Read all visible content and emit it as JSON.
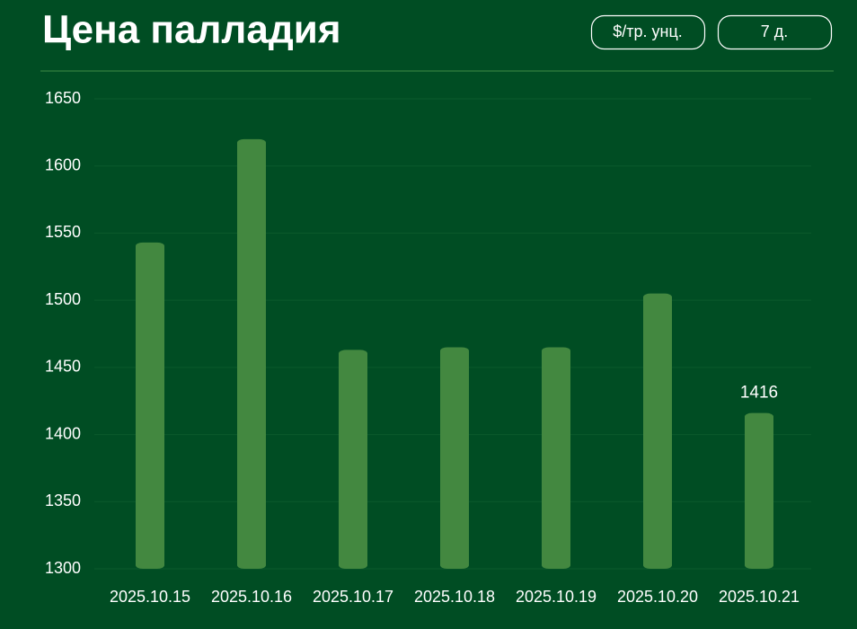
{
  "chart_data": {
    "type": "bar",
    "title": "Цена палладия",
    "unit_button": "$/тр. унц.",
    "period_button": "7 д.",
    "categories": [
      "2025.10.15",
      "2025.10.16",
      "2025.10.17",
      "2025.10.18",
      "2025.10.19",
      "2025.10.20",
      "2025.10.21"
    ],
    "values": [
      1543,
      1620,
      1463,
      1465,
      1465,
      1505,
      1416
    ],
    "color": "#438840",
    "ylim": [
      1300,
      1650
    ],
    "yticks": [
      1300,
      1350,
      1400,
      1450,
      1500,
      1550,
      1600,
      1650
    ],
    "grid": true,
    "data_labels": "last"
  }
}
